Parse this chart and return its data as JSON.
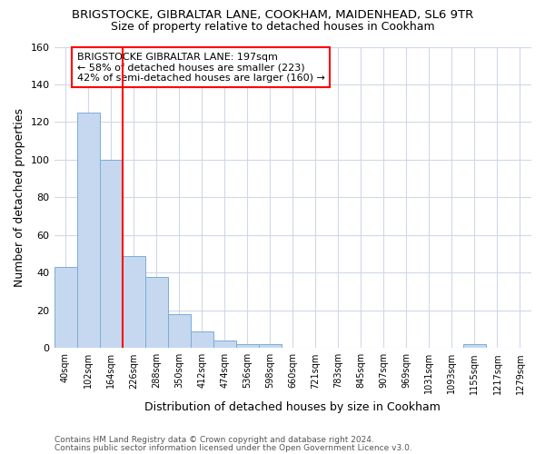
{
  "title1": "BRIGSTOCKE, GIBRALTAR LANE, COOKHAM, MAIDENHEAD, SL6 9TR",
  "title2": "Size of property relative to detached houses in Cookham",
  "xlabel": "Distribution of detached houses by size in Cookham",
  "ylabel": "Number of detached properties",
  "bins": [
    "40sqm",
    "102sqm",
    "164sqm",
    "226sqm",
    "288sqm",
    "350sqm",
    "412sqm",
    "474sqm",
    "536sqm",
    "598sqm",
    "660sqm",
    "721sqm",
    "783sqm",
    "845sqm",
    "907sqm",
    "969sqm",
    "1031sqm",
    "1093sqm",
    "1155sqm",
    "1217sqm",
    "1279sqm"
  ],
  "values": [
    43,
    125,
    100,
    49,
    38,
    18,
    9,
    4,
    2,
    2,
    0,
    0,
    0,
    0,
    0,
    0,
    0,
    0,
    2,
    0,
    0
  ],
  "bar_color": "#c5d8f0",
  "bar_edge_color": "#7aadd4",
  "red_line_x": 2.5,
  "annotation_title": "BRIGSTOCKE GIBRALTAR LANE: 197sqm",
  "annotation_line1": "← 58% of detached houses are smaller (223)",
  "annotation_line2": "42% of semi-detached houses are larger (160) →",
  "footer1": "Contains HM Land Registry data © Crown copyright and database right 2024.",
  "footer2": "Contains public sector information licensed under the Open Government Licence v3.0.",
  "ylim": [
    0,
    160
  ],
  "background_color": "#ffffff",
  "grid_color": "#d0d8e8",
  "title1_fontsize": 9.5,
  "title2_fontsize": 9,
  "xlabel_fontsize": 9,
  "ylabel_fontsize": 9,
  "footer_fontsize": 6.5
}
